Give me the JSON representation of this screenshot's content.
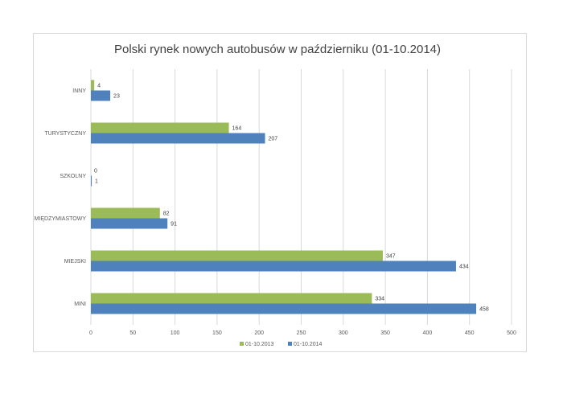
{
  "chart_data": {
    "type": "bar",
    "orientation": "horizontal",
    "title": "Polski rynek nowych autobusów w październiku (01-10.2014)",
    "categories": [
      "MINI",
      "MIEJSKI",
      "MIĘDZYMIASTOWY",
      "SZKOLNY",
      "TURYSTYCZNY",
      "INNY"
    ],
    "series": [
      {
        "name": "01-10.2013",
        "color": "#9bbb59",
        "values": [
          334,
          347,
          82,
          0,
          164,
          4
        ]
      },
      {
        "name": "01-10.2014",
        "color": "#4f81bd",
        "values": [
          458,
          434,
          91,
          1,
          207,
          23
        ]
      }
    ],
    "xlim": [
      0,
      500
    ],
    "xticks": [
      "0",
      "50",
      "100",
      "150",
      "200",
      "250",
      "300",
      "350",
      "400",
      "450",
      "500"
    ],
    "grid": true,
    "legend": "bottom",
    "grid_color": "#d9d9d9"
  }
}
